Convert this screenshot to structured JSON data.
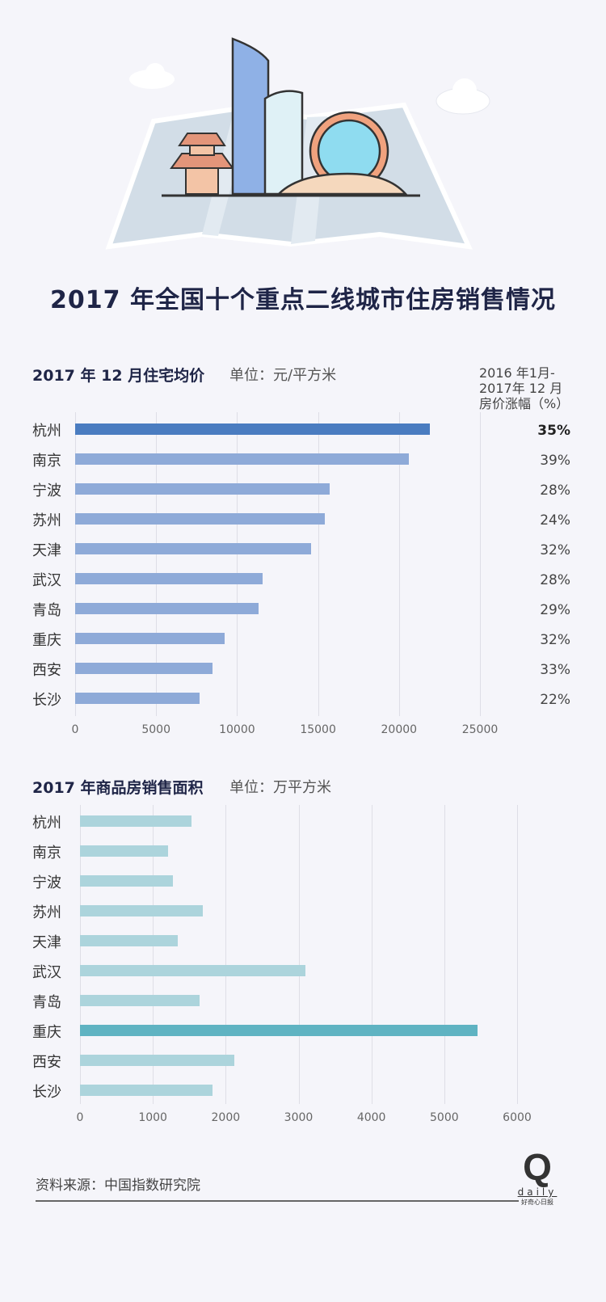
{
  "title": "2017 年全国十个重点二线城市住房销售情况",
  "chart_data": [
    {
      "type": "bar",
      "title": "2017 年 12 月住宅均价",
      "unit": "单位：元/平方米",
      "categories": [
        "杭州",
        "南京",
        "宁波",
        "苏州",
        "天津",
        "武汉",
        "青岛",
        "重庆",
        "西安",
        "长沙"
      ],
      "values": [
        21900,
        20600,
        15700,
        15400,
        14550,
        11600,
        11350,
        9250,
        8480,
        7700
      ],
      "highlight": "杭州",
      "xlim": [
        0,
        25000
      ],
      "xticks": [
        "0",
        "5000",
        "10000",
        "15000",
        "20000",
        "25000"
      ],
      "bar_color": "#8eaad8",
      "highlight_color": "#4a7cc0",
      "side_column": {
        "header": [
          "2016 年1月-",
          "2017年 12 月",
          "房价涨幅（%）"
        ],
        "values": [
          "35%",
          "39%",
          "28%",
          "24%",
          "32%",
          "28%",
          "29%",
          "32%",
          "33%",
          "22%"
        ]
      }
    },
    {
      "type": "bar",
      "title": "2017 年商品房销售面积",
      "unit": "单位：万平方米",
      "categories": [
        "杭州",
        "南京",
        "宁波",
        "苏州",
        "天津",
        "武汉",
        "青岛",
        "重庆",
        "西安",
        "长沙"
      ],
      "values": [
        1525,
        1210,
        1280,
        1690,
        1340,
        3090,
        1640,
        5460,
        2120,
        1820
      ],
      "highlight": "重庆",
      "xlim": [
        0,
        6000
      ],
      "xticks": [
        "0",
        "1000",
        "2000",
        "3000",
        "4000",
        "5000",
        "6000"
      ],
      "bar_color": "#acd4dc",
      "highlight_color": "#5fb3c2"
    }
  ],
  "footer": {
    "source": "资料来源：中国指数研究院",
    "logo_letter": "Q",
    "logo_word": "daily",
    "logo_cn": "好奇心日报"
  }
}
